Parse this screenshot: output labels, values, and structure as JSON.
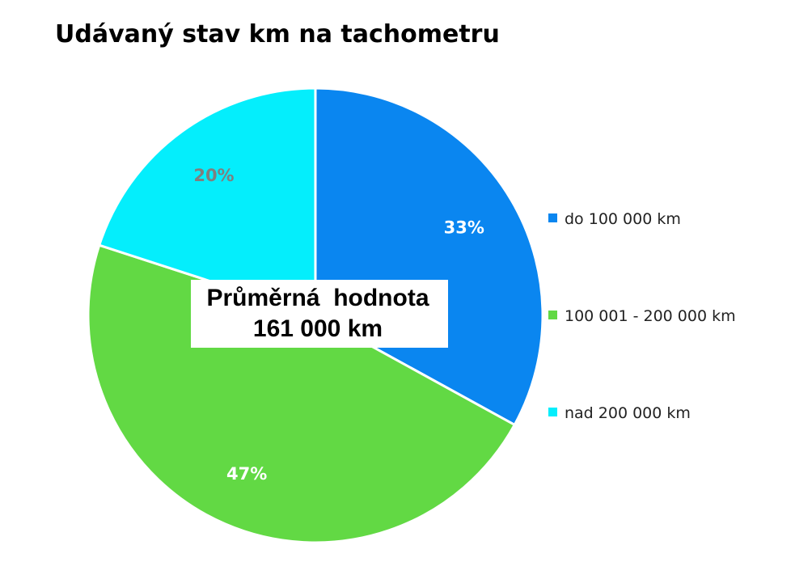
{
  "chart_data": {
    "type": "pie",
    "title": "Udávaný stav km na tachometru",
    "categories": [
      "do 100 000 km",
      "100 001 - 200 000 km",
      "nad 200 000 km"
    ],
    "values": [
      33,
      47,
      20
    ],
    "labels": [
      "33%",
      "47%",
      "20%"
    ],
    "colors": [
      "#0A86F0",
      "#62D944",
      "#04EEFC"
    ],
    "label_colors": [
      "#ffffff",
      "#ffffff",
      "#7f7f7f"
    ],
    "legend_position": "right",
    "annotation": {
      "line1": "Průměrná  hodnota",
      "line2": "161 000 km"
    }
  }
}
